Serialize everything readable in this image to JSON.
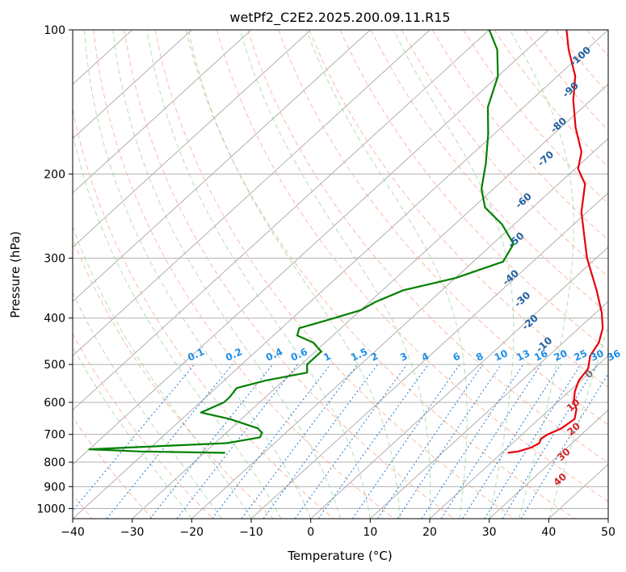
{
  "chart_data": {
    "type": "line",
    "title": "wetPf2_C2E2.2025.200.09.11.R15",
    "xlabel": "Temperature (°C)",
    "ylabel": "Pressure (hPa)",
    "xlim": [
      -40,
      50
    ],
    "ylim": [
      1050,
      100
    ],
    "y_scale": "log",
    "grid": true,
    "x_ticks": [
      -40,
      -30,
      -20,
      -10,
      0,
      10,
      20,
      30,
      40,
      50
    ],
    "y_ticks": [
      100,
      200,
      300,
      400,
      500,
      600,
      700,
      800,
      900,
      1000
    ],
    "series": [
      {
        "color": "#e8000b",
        "points": [
          {
            "p": 765,
            "t": 21.0
          },
          {
            "p": 760,
            "t": 22.5
          },
          {
            "p": 745,
            "t": 24.0
          },
          {
            "p": 730,
            "t": 24.5
          },
          {
            "p": 715,
            "t": 24.0
          },
          {
            "p": 700,
            "t": 24.3
          },
          {
            "p": 680,
            "t": 25.5
          },
          {
            "p": 650,
            "t": 26.0
          },
          {
            "p": 620,
            "t": 24.5
          },
          {
            "p": 600,
            "t": 22.8
          },
          {
            "p": 570,
            "t": 21.0
          },
          {
            "p": 540,
            "t": 19.6
          },
          {
            "p": 510,
            "t": 19.0
          },
          {
            "p": 480,
            "t": 17.0
          },
          {
            "p": 450,
            "t": 16.0
          },
          {
            "p": 420,
            "t": 14.0
          },
          {
            "p": 390,
            "t": 11.0
          },
          {
            "p": 350,
            "t": 6.0
          },
          {
            "p": 300,
            "t": -1.5
          },
          {
            "p": 270,
            "t": -6.0
          },
          {
            "p": 240,
            "t": -11.0
          },
          {
            "p": 210,
            "t": -15.5
          },
          {
            "p": 195,
            "t": -19.5
          },
          {
            "p": 180,
            "t": -22.0
          },
          {
            "p": 160,
            "t": -27.5
          },
          {
            "p": 140,
            "t": -33.0
          },
          {
            "p": 125,
            "t": -37.0
          },
          {
            "p": 110,
            "t": -43.0
          },
          {
            "p": 100,
            "t": -47.0
          }
        ]
      },
      {
        "color": "#008000",
        "points": [
          {
            "p": 765,
            "t": -26.5
          },
          {
            "p": 760,
            "t": -41.0
          },
          {
            "p": 752,
            "t": -50.0
          },
          {
            "p": 730,
            "t": -28.0
          },
          {
            "p": 710,
            "t": -23.5
          },
          {
            "p": 695,
            "t": -24.0
          },
          {
            "p": 680,
            "t": -25.5
          },
          {
            "p": 650,
            "t": -32.0
          },
          {
            "p": 630,
            "t": -38.0
          },
          {
            "p": 600,
            "t": -36.0
          },
          {
            "p": 585,
            "t": -36.0
          },
          {
            "p": 560,
            "t": -36.5
          },
          {
            "p": 540,
            "t": -33.0
          },
          {
            "p": 520,
            "t": -27.5
          },
          {
            "p": 500,
            "t": -29.0
          },
          {
            "p": 470,
            "t": -29.0
          },
          {
            "p": 450,
            "t": -32.0
          },
          {
            "p": 435,
            "t": -36.0
          },
          {
            "p": 420,
            "t": -37.0
          },
          {
            "p": 405,
            "t": -34.0
          },
          {
            "p": 385,
            "t": -30.0
          },
          {
            "p": 370,
            "t": -29.0
          },
          {
            "p": 350,
            "t": -26.5
          },
          {
            "p": 330,
            "t": -20.0
          },
          {
            "p": 305,
            "t": -15.0
          },
          {
            "p": 280,
            "t": -16.5
          },
          {
            "p": 255,
            "t": -22.0
          },
          {
            "p": 235,
            "t": -28.0
          },
          {
            "p": 215,
            "t": -32.0
          },
          {
            "p": 190,
            "t": -36.0
          },
          {
            "p": 165,
            "t": -41.0
          },
          {
            "p": 145,
            "t": -46.0
          },
          {
            "p": 125,
            "t": -50.0
          },
          {
            "p": 110,
            "t": -55.0
          },
          {
            "p": 100,
            "t": -60.0
          }
        ]
      }
    ],
    "dry_adiabat_labels": [
      {
        "text": "-100",
        "p": 115,
        "t": -39
      },
      {
        "text": "-90",
        "p": 135,
        "t": -34.5
      },
      {
        "text": "-80",
        "p": 160,
        "t": -30
      },
      {
        "text": "-70",
        "p": 188,
        "t": -26
      },
      {
        "text": "-60",
        "p": 230,
        "t": -22
      },
      {
        "text": "-50",
        "p": 278,
        "t": -16
      },
      {
        "text": "-40",
        "p": 333,
        "t": -10
      },
      {
        "text": "-30",
        "p": 370,
        "t": -4
      },
      {
        "text": "-20",
        "p": 413,
        "t": 1.5
      },
      {
        "text": "-10",
        "p": 460,
        "t": 8
      },
      {
        "text": "0",
        "p": 530,
        "t": 21
      },
      {
        "text": "10",
        "p": 615,
        "t": 24
      },
      {
        "text": "20",
        "p": 690,
        "t": 28.5
      },
      {
        "text": "30",
        "p": 780,
        "t": 31.5
      },
      {
        "text": "40",
        "p": 880,
        "t": 35.5
      }
    ],
    "mixing_ratio_labels": [
      "0.1",
      "0.2",
      "0.4",
      "0.6",
      "1",
      "1.5",
      "2",
      "3",
      "4",
      "6",
      "8",
      "10",
      "13",
      "16",
      "20",
      "25",
      "30",
      "36"
    ]
  }
}
